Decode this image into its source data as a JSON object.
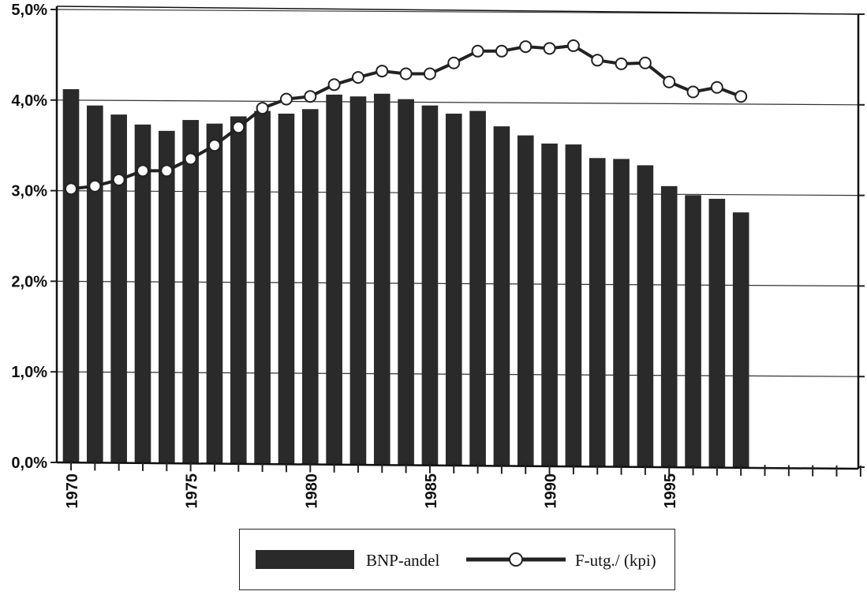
{
  "chart_data": {
    "type": "bar",
    "title": "",
    "xlabel": "",
    "ylabel": "",
    "ylim": [
      0,
      5
    ],
    "y_ticks": [
      "0,0%",
      "1,0%",
      "2,0%",
      "3,0%",
      "4,0%",
      "5,0%"
    ],
    "x_tick_labels": [
      "1970",
      "1975",
      "1980",
      "1985",
      "1990",
      "1995"
    ],
    "x_range": [
      1970,
      2003
    ],
    "grid": "horizontal",
    "legend_placement": "bottom",
    "colors": {
      "bar": "#2a2a2a",
      "line": "#222222",
      "marker_fill": "#ffffff"
    },
    "categories": [
      1970,
      1971,
      1972,
      1973,
      1974,
      1975,
      1976,
      1977,
      1978,
      1979,
      1980,
      1981,
      1982,
      1983,
      1984,
      1985,
      1986,
      1987,
      1988,
      1989,
      1990,
      1991,
      1992,
      1993,
      1994,
      1995,
      1996,
      1997,
      1998
    ],
    "series": [
      {
        "name": "BNP-andel",
        "type": "bar",
        "values": [
          4.12,
          3.94,
          3.84,
          3.73,
          3.66,
          3.78,
          3.74,
          3.82,
          3.88,
          3.85,
          3.9,
          4.06,
          4.04,
          4.07,
          4.01,
          3.94,
          3.85,
          3.88,
          3.71,
          3.61,
          3.52,
          3.51,
          3.36,
          3.35,
          3.28,
          3.05,
          2.95,
          2.91,
          2.76
        ]
      },
      {
        "name": "F-utg./ (kpi)",
        "type": "line",
        "values": [
          3.02,
          3.05,
          3.12,
          3.22,
          3.22,
          3.35,
          3.5,
          3.7,
          3.91,
          4.01,
          4.04,
          4.17,
          4.25,
          4.32,
          4.29,
          4.29,
          4.41,
          4.54,
          4.54,
          4.59,
          4.57,
          4.6,
          4.44,
          4.4,
          4.41,
          4.2,
          4.09,
          4.14,
          4.04
        ]
      }
    ]
  }
}
